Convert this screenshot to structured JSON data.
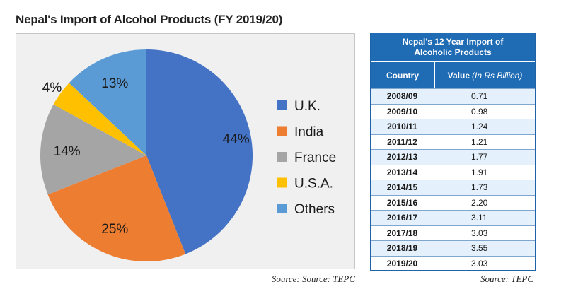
{
  "left_title": "Nepal's Import of Alcohol Products (FY 2019/20)",
  "source_left": "Source: Source: TEPC",
  "source_right": "Source: TEPC",
  "chart_data": {
    "type": "pie",
    "title": "Nepal's Import of Alcohol Products (FY 2019/20)",
    "legend_position": "right",
    "series": [
      {
        "name": "U.K.",
        "value": 44,
        "label": "44%",
        "color": "#4472c4"
      },
      {
        "name": "India",
        "value": 25,
        "label": "25%",
        "color": "#ed7d31"
      },
      {
        "name": "France",
        "value": 14,
        "label": "14%",
        "color": "#a5a5a5"
      },
      {
        "name": "U.S.A.",
        "value": 4,
        "label": "4%",
        "color": "#ffc000"
      },
      {
        "name": "Others",
        "value": 13,
        "label": "13%",
        "color": "#5b9bd5"
      }
    ]
  },
  "table": {
    "title": "Nepal's 12 Year Import of Alcoholic Products",
    "col_country": "Country",
    "col_value": "Value",
    "col_value_unit": "(In Rs Billion)",
    "rows": [
      {
        "year": "2008/09",
        "value": "0.71"
      },
      {
        "year": "2009/10",
        "value": "0.98"
      },
      {
        "year": "2010/11",
        "value": "1.24"
      },
      {
        "year": "2011/12",
        "value": "1.21"
      },
      {
        "year": "2012/13",
        "value": "1.77"
      },
      {
        "year": "2013/14",
        "value": "1.91"
      },
      {
        "year": "2014/15",
        "value": "1.73"
      },
      {
        "year": "2015/16",
        "value": "2.20"
      },
      {
        "year": "2016/17",
        "value": "3.11"
      },
      {
        "year": "2017/18",
        "value": "3.03"
      },
      {
        "year": "2018/19",
        "value": "3.55"
      },
      {
        "year": "2019/20",
        "value": "3.03"
      }
    ]
  }
}
